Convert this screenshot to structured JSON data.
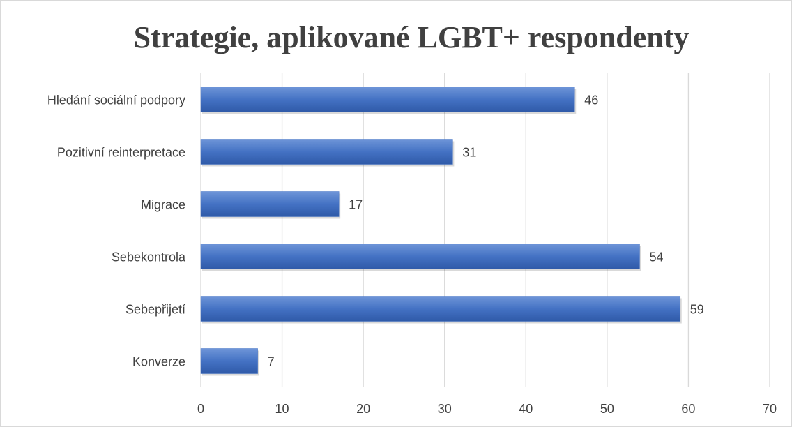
{
  "chart_data": {
    "type": "bar",
    "orientation": "horizontal",
    "title": "Strategie, aplikované LGBT+ respondenty",
    "categories": [
      "Hledání sociální podpory",
      "Pozitivní reinterpretace",
      "Migrace",
      "Sebekontrola",
      "Sebepřijetí",
      "Konverze"
    ],
    "values": [
      46,
      31,
      17,
      54,
      59,
      7
    ],
    "color": "#4472c4",
    "xlim": [
      0,
      70
    ],
    "xticks": [
      0,
      10,
      20,
      30,
      40,
      50,
      60,
      70
    ],
    "grid": true
  }
}
